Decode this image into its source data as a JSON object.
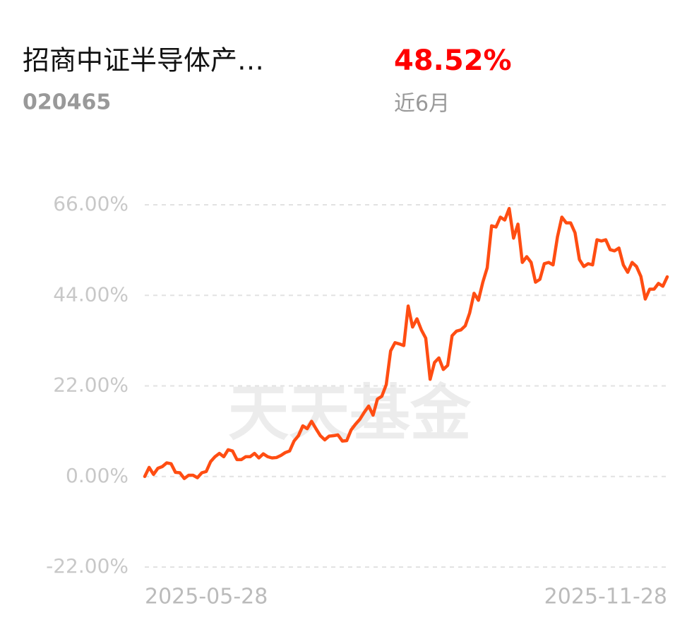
{
  "fund": {
    "name": "招商中证半导体产…",
    "code": "020465",
    "return": "48.52%",
    "period": "近6月"
  },
  "chart_data": {
    "type": "line",
    "watermark": "天天基金",
    "categories": [
      "2025-05-28",
      null,
      null,
      null,
      null,
      null,
      null,
      null,
      null,
      null,
      null,
      null,
      null,
      null,
      null,
      null,
      null,
      null,
      null,
      null,
      null,
      null,
      null,
      null,
      null,
      null,
      null,
      null,
      null,
      null,
      null,
      null,
      null,
      null,
      null,
      null,
      null,
      null,
      null,
      null,
      null,
      null,
      null,
      null,
      null,
      null,
      null,
      null,
      null,
      null,
      null,
      null,
      null,
      null,
      null,
      null,
      null,
      null,
      null,
      null,
      null,
      null,
      null,
      null,
      null,
      null,
      null,
      null,
      null,
      null,
      null,
      null,
      null,
      null,
      null,
      null,
      null,
      null,
      null,
      null,
      null,
      null,
      null,
      null,
      null,
      null,
      null,
      null,
      null,
      null,
      null,
      null,
      null,
      null,
      null,
      null,
      null,
      null,
      null,
      null,
      null,
      null,
      null,
      null,
      null,
      null,
      null,
      null,
      null,
      null,
      null,
      null,
      null,
      null,
      null,
      null,
      null,
      null,
      null,
      "2025-11-28"
    ],
    "series": [
      {
        "name": "招商中证半导体产…",
        "color": "#ff4d12",
        "values": [
          0,
          2.2,
          0.5,
          2,
          2.4,
          3.3,
          3.1,
          1,
          0.9,
          -0.5,
          0.3,
          0.3,
          -0.3,
          0.9,
          1.2,
          3.6,
          4.8,
          5.6,
          4.8,
          6.5,
          6.2,
          4.1,
          4.1,
          4.8,
          4.8,
          5.6,
          4.5,
          5.5,
          4.8,
          4.5,
          4.6,
          5.1,
          5.8,
          6.2,
          8.6,
          9.9,
          12.3,
          11.6,
          13.4,
          11.6,
          9.9,
          8.9,
          9.8,
          9.9,
          10.1,
          8.6,
          8.7,
          11.3,
          12.7,
          13.9,
          15.6,
          17.1,
          14.9,
          18.8,
          19.5,
          22.3,
          30.5,
          32.5,
          32.2,
          31.8,
          41.4,
          36.3,
          38.3,
          35.6,
          33.6,
          23.6,
          27.7,
          28.8,
          26.0,
          27.0,
          34.2,
          35.3,
          35.6,
          36.6,
          39.7,
          44.5,
          42.8,
          47.2,
          50.7,
          60.9,
          60.6,
          63.0,
          62.3,
          65.1,
          57.9,
          61.3,
          52.0,
          53.4,
          52.0,
          47.2,
          47.9,
          51.7,
          52.0,
          51.4,
          58.2,
          63.0,
          61.6,
          61.6,
          59.2,
          52.7,
          51.0,
          51.7,
          51.4,
          57.5,
          57.2,
          57.5,
          55.1,
          54.8,
          55.5,
          51.4,
          49.6,
          52.0,
          51.0,
          48.6,
          43.1,
          45.5,
          45.5,
          46.9,
          46.2,
          48.5
        ]
      }
    ],
    "ylim": [
      -22,
      66
    ],
    "yticks": [
      {
        "value": 66,
        "label": "66.00%"
      },
      {
        "value": 44,
        "label": "44.00%"
      },
      {
        "value": 22,
        "label": "22.00%"
      },
      {
        "value": 0,
        "label": "0.00%"
      },
      {
        "value": -22,
        "label": "-22.00%"
      }
    ],
    "grid": true
  }
}
